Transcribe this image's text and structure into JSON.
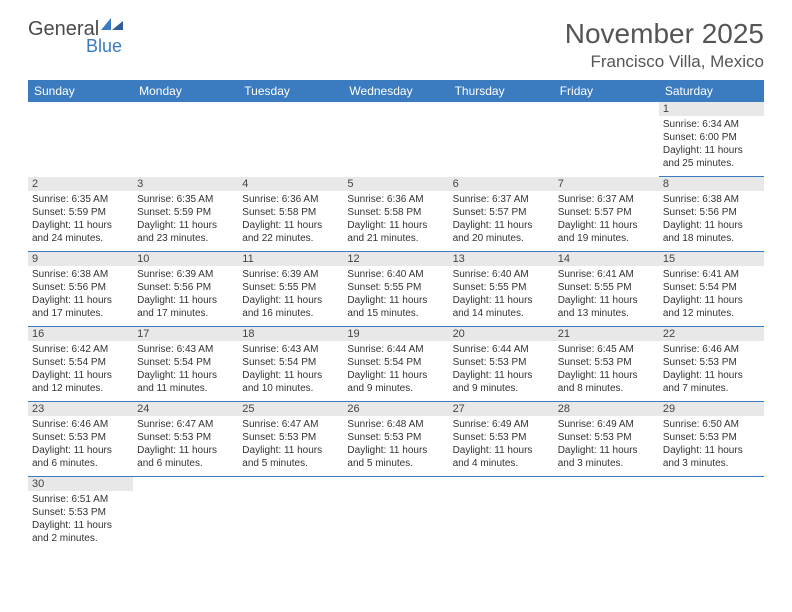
{
  "brand": {
    "word1": "General",
    "word2": "Blue"
  },
  "title": "November 2025",
  "location": "Francisco Villa, Mexico",
  "colors": {
    "accent": "#3b7bbf",
    "header_text": "#ffffff",
    "grey_bar": "#e8e8e8",
    "border": "#3b7bbf"
  },
  "days": [
    "Sunday",
    "Monday",
    "Tuesday",
    "Wednesday",
    "Thursday",
    "Friday",
    "Saturday"
  ],
  "weeks": [
    [
      null,
      null,
      null,
      null,
      null,
      null,
      {
        "n": "1",
        "sr": "Sunrise: 6:34 AM",
        "ss": "Sunset: 6:00 PM",
        "d1": "Daylight: 11 hours",
        "d2": "and 25 minutes."
      }
    ],
    [
      {
        "n": "2",
        "sr": "Sunrise: 6:35 AM",
        "ss": "Sunset: 5:59 PM",
        "d1": "Daylight: 11 hours",
        "d2": "and 24 minutes."
      },
      {
        "n": "3",
        "sr": "Sunrise: 6:35 AM",
        "ss": "Sunset: 5:59 PM",
        "d1": "Daylight: 11 hours",
        "d2": "and 23 minutes."
      },
      {
        "n": "4",
        "sr": "Sunrise: 6:36 AM",
        "ss": "Sunset: 5:58 PM",
        "d1": "Daylight: 11 hours",
        "d2": "and 22 minutes."
      },
      {
        "n": "5",
        "sr": "Sunrise: 6:36 AM",
        "ss": "Sunset: 5:58 PM",
        "d1": "Daylight: 11 hours",
        "d2": "and 21 minutes."
      },
      {
        "n": "6",
        "sr": "Sunrise: 6:37 AM",
        "ss": "Sunset: 5:57 PM",
        "d1": "Daylight: 11 hours",
        "d2": "and 20 minutes."
      },
      {
        "n": "7",
        "sr": "Sunrise: 6:37 AM",
        "ss": "Sunset: 5:57 PM",
        "d1": "Daylight: 11 hours",
        "d2": "and 19 minutes."
      },
      {
        "n": "8",
        "sr": "Sunrise: 6:38 AM",
        "ss": "Sunset: 5:56 PM",
        "d1": "Daylight: 11 hours",
        "d2": "and 18 minutes."
      }
    ],
    [
      {
        "n": "9",
        "sr": "Sunrise: 6:38 AM",
        "ss": "Sunset: 5:56 PM",
        "d1": "Daylight: 11 hours",
        "d2": "and 17 minutes."
      },
      {
        "n": "10",
        "sr": "Sunrise: 6:39 AM",
        "ss": "Sunset: 5:56 PM",
        "d1": "Daylight: 11 hours",
        "d2": "and 17 minutes."
      },
      {
        "n": "11",
        "sr": "Sunrise: 6:39 AM",
        "ss": "Sunset: 5:55 PM",
        "d1": "Daylight: 11 hours",
        "d2": "and 16 minutes."
      },
      {
        "n": "12",
        "sr": "Sunrise: 6:40 AM",
        "ss": "Sunset: 5:55 PM",
        "d1": "Daylight: 11 hours",
        "d2": "and 15 minutes."
      },
      {
        "n": "13",
        "sr": "Sunrise: 6:40 AM",
        "ss": "Sunset: 5:55 PM",
        "d1": "Daylight: 11 hours",
        "d2": "and 14 minutes."
      },
      {
        "n": "14",
        "sr": "Sunrise: 6:41 AM",
        "ss": "Sunset: 5:55 PM",
        "d1": "Daylight: 11 hours",
        "d2": "and 13 minutes."
      },
      {
        "n": "15",
        "sr": "Sunrise: 6:41 AM",
        "ss": "Sunset: 5:54 PM",
        "d1": "Daylight: 11 hours",
        "d2": "and 12 minutes."
      }
    ],
    [
      {
        "n": "16",
        "sr": "Sunrise: 6:42 AM",
        "ss": "Sunset: 5:54 PM",
        "d1": "Daylight: 11 hours",
        "d2": "and 12 minutes."
      },
      {
        "n": "17",
        "sr": "Sunrise: 6:43 AM",
        "ss": "Sunset: 5:54 PM",
        "d1": "Daylight: 11 hours",
        "d2": "and 11 minutes."
      },
      {
        "n": "18",
        "sr": "Sunrise: 6:43 AM",
        "ss": "Sunset: 5:54 PM",
        "d1": "Daylight: 11 hours",
        "d2": "and 10 minutes."
      },
      {
        "n": "19",
        "sr": "Sunrise: 6:44 AM",
        "ss": "Sunset: 5:54 PM",
        "d1": "Daylight: 11 hours",
        "d2": "and 9 minutes."
      },
      {
        "n": "20",
        "sr": "Sunrise: 6:44 AM",
        "ss": "Sunset: 5:53 PM",
        "d1": "Daylight: 11 hours",
        "d2": "and 9 minutes."
      },
      {
        "n": "21",
        "sr": "Sunrise: 6:45 AM",
        "ss": "Sunset: 5:53 PM",
        "d1": "Daylight: 11 hours",
        "d2": "and 8 minutes."
      },
      {
        "n": "22",
        "sr": "Sunrise: 6:46 AM",
        "ss": "Sunset: 5:53 PM",
        "d1": "Daylight: 11 hours",
        "d2": "and 7 minutes."
      }
    ],
    [
      {
        "n": "23",
        "sr": "Sunrise: 6:46 AM",
        "ss": "Sunset: 5:53 PM",
        "d1": "Daylight: 11 hours",
        "d2": "and 6 minutes."
      },
      {
        "n": "24",
        "sr": "Sunrise: 6:47 AM",
        "ss": "Sunset: 5:53 PM",
        "d1": "Daylight: 11 hours",
        "d2": "and 6 minutes."
      },
      {
        "n": "25",
        "sr": "Sunrise: 6:47 AM",
        "ss": "Sunset: 5:53 PM",
        "d1": "Daylight: 11 hours",
        "d2": "and 5 minutes."
      },
      {
        "n": "26",
        "sr": "Sunrise: 6:48 AM",
        "ss": "Sunset: 5:53 PM",
        "d1": "Daylight: 11 hours",
        "d2": "and 5 minutes."
      },
      {
        "n": "27",
        "sr": "Sunrise: 6:49 AM",
        "ss": "Sunset: 5:53 PM",
        "d1": "Daylight: 11 hours",
        "d2": "and 4 minutes."
      },
      {
        "n": "28",
        "sr": "Sunrise: 6:49 AM",
        "ss": "Sunset: 5:53 PM",
        "d1": "Daylight: 11 hours",
        "d2": "and 3 minutes."
      },
      {
        "n": "29",
        "sr": "Sunrise: 6:50 AM",
        "ss": "Sunset: 5:53 PM",
        "d1": "Daylight: 11 hours",
        "d2": "and 3 minutes."
      }
    ],
    [
      {
        "n": "30",
        "sr": "Sunrise: 6:51 AM",
        "ss": "Sunset: 5:53 PM",
        "d1": "Daylight: 11 hours",
        "d2": "and 2 minutes."
      },
      null,
      null,
      null,
      null,
      null,
      null
    ]
  ]
}
